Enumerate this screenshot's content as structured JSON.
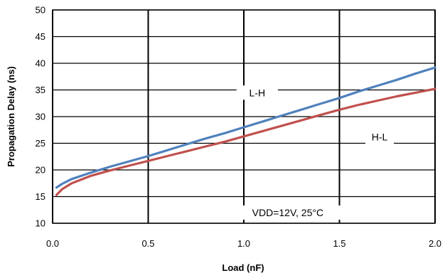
{
  "chart_data": {
    "type": "line",
    "title": "",
    "xlabel": "Load (nF)",
    "ylabel": "Propagation Delay (ns)",
    "xlim": [
      0,
      2.0
    ],
    "ylim": [
      10,
      50
    ],
    "x_ticks": [
      "0.0",
      "0.5",
      "1.0",
      "1.5",
      "2.0"
    ],
    "y_ticks": [
      "10",
      "15",
      "20",
      "25",
      "30",
      "35",
      "40",
      "45",
      "50"
    ],
    "grid": true,
    "legend": "none",
    "series": [
      {
        "name": "L-H",
        "color": "#4F81BD",
        "x": [
          0.02,
          0.05,
          0.1,
          0.2,
          0.3,
          0.4,
          0.5,
          0.6,
          0.7,
          0.8,
          0.9,
          1.0,
          1.1,
          1.2,
          1.3,
          1.4,
          1.5,
          1.6,
          1.7,
          1.8,
          1.9,
          2.0
        ],
        "y": [
          16.7,
          17.4,
          18.3,
          19.5,
          20.6,
          21.6,
          22.6,
          23.7,
          24.8,
          25.9,
          26.9,
          28.0,
          29.1,
          30.2,
          31.3,
          32.4,
          33.5,
          34.7,
          35.8,
          36.9,
          38.1,
          39.2
        ]
      },
      {
        "name": "H-L",
        "color": "#C0504D",
        "x": [
          0.02,
          0.05,
          0.1,
          0.2,
          0.3,
          0.4,
          0.5,
          0.6,
          0.7,
          0.8,
          0.9,
          1.0,
          1.1,
          1.2,
          1.3,
          1.4,
          1.5,
          1.6,
          1.7,
          1.8,
          1.9,
          2.0
        ],
        "y": [
          15.3,
          16.4,
          17.5,
          18.9,
          19.9,
          20.8,
          21.7,
          22.6,
          23.5,
          24.4,
          25.3,
          26.3,
          27.3,
          28.3,
          29.3,
          30.3,
          31.3,
          32.2,
          33.0,
          33.8,
          34.5,
          35.2
        ]
      }
    ],
    "annotations": [
      {
        "id": "lh",
        "text": "L-H",
        "x": 1.07,
        "y": 34.5
      },
      {
        "id": "hl",
        "text": "H-L",
        "x": 1.71,
        "y": 26.2
      },
      {
        "id": "cond",
        "text": "VDD=12V, 25°C",
        "x": 1.23,
        "y": 12.0
      }
    ]
  }
}
